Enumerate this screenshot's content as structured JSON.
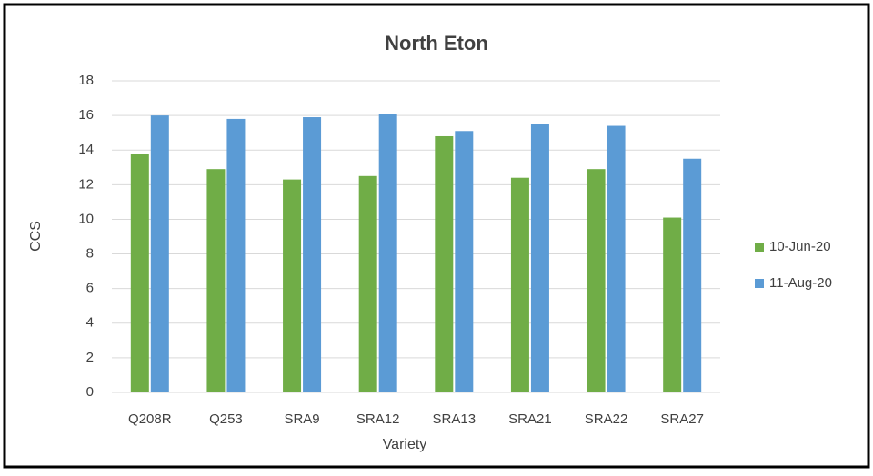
{
  "chart_data": {
    "type": "bar",
    "title": "North Eton",
    "xlabel": "Variety",
    "ylabel": "CCS",
    "categories": [
      "Q208R",
      "Q253",
      "SRA9",
      "SRA12",
      "SRA13",
      "SRA21",
      "SRA22",
      "SRA27"
    ],
    "series": [
      {
        "name": "10-Jun-20",
        "color": "#70ad47",
        "values": [
          13.8,
          12.9,
          12.3,
          12.5,
          14.8,
          12.4,
          12.9,
          10.1
        ]
      },
      {
        "name": "11-Aug-20",
        "color": "#5b9bd5",
        "values": [
          16.0,
          15.8,
          15.9,
          16.1,
          15.1,
          15.5,
          15.4,
          13.5
        ]
      }
    ],
    "ylim": [
      0,
      18
    ],
    "yticks": [
      0,
      2,
      4,
      6,
      8,
      10,
      12,
      14,
      16,
      18
    ],
    "grid": true,
    "legend": "right"
  }
}
